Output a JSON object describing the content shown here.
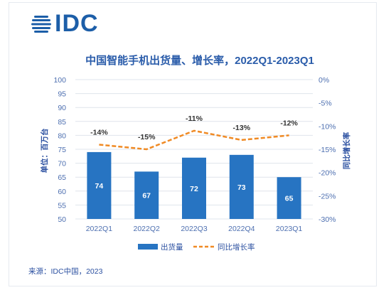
{
  "logo": {
    "text": "IDC",
    "icon": "globe-lines-icon"
  },
  "source": "来源：IDC中国，2023",
  "colors": {
    "bar": "#2774c2",
    "line": "#f08a24",
    "text": "#2a5caa",
    "grid": "#dfe4ec"
  },
  "chart_data": {
    "type": "bar",
    "title": "中国智能手机出货量、增长率，2022Q1-2023Q1",
    "categories": [
      "2022Q1",
      "2022Q2",
      "2022Q3",
      "2022Q4",
      "2023Q1"
    ],
    "ylabel": "单位：百万台",
    "y2label": "同比增长率",
    "ylim": [
      50,
      100
    ],
    "y_ticks": [
      100,
      95,
      90,
      85,
      80,
      75,
      70,
      65,
      60,
      55,
      50
    ],
    "y2lim": [
      -30,
      0
    ],
    "y2_ticks": [
      "0%",
      "-5%",
      "-10%",
      "-15%",
      "-20%",
      "-25%",
      "-30%"
    ],
    "y2_tick_values": [
      0,
      -5,
      -10,
      -15,
      -20,
      -25,
      -30
    ],
    "grid": true,
    "legend_position": "bottom",
    "series": [
      {
        "name": "出货量",
        "type": "bar",
        "axis": "left",
        "values": [
          74,
          67,
          72,
          73,
          65
        ],
        "labels": [
          "74",
          "67",
          "72",
          "73",
          "65"
        ]
      },
      {
        "name": "同比增长率",
        "type": "line",
        "style": "dashed",
        "axis": "right",
        "values": [
          -14,
          -15,
          -11,
          -13,
          -12
        ],
        "labels": [
          "-14%",
          "-15%",
          "-11%",
          "-13%",
          "-12%"
        ]
      }
    ]
  }
}
